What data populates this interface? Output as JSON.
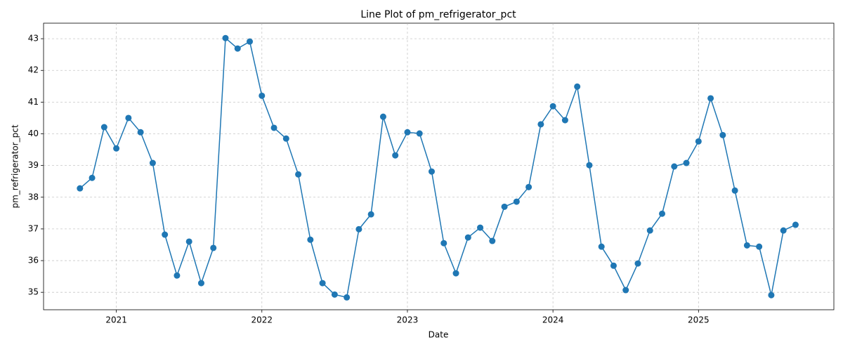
{
  "chart_data": {
    "type": "line",
    "title": "Line Plot of pm_refrigerator_pct",
    "x_label": "Date",
    "y_label": "pm_refrigerator_pct",
    "x": [
      "2020-10",
      "2020-11",
      "2020-12",
      "2021-01",
      "2021-02",
      "2021-03",
      "2021-04",
      "2021-05",
      "2021-06",
      "2021-07",
      "2021-08",
      "2021-09",
      "2021-10",
      "2021-11",
      "2021-12",
      "2022-01",
      "2022-02",
      "2022-03",
      "2022-04",
      "2022-05",
      "2022-06",
      "2022-07",
      "2022-08",
      "2022-09",
      "2022-10",
      "2022-11",
      "2022-12",
      "2023-01",
      "2023-02",
      "2023-03",
      "2023-04",
      "2023-05",
      "2023-06",
      "2023-07",
      "2023-08",
      "2023-09",
      "2023-10",
      "2023-11",
      "2023-12",
      "2024-01",
      "2024-02",
      "2024-03",
      "2024-04",
      "2024-05",
      "2024-06",
      "2024-07",
      "2024-08",
      "2024-09",
      "2024-10",
      "2024-11",
      "2024-12",
      "2025-01",
      "2025-02",
      "2025-03",
      "2025-04",
      "2025-05",
      "2025-06",
      "2025-07",
      "2025-08",
      "2025-09"
    ],
    "series": [
      {
        "name": "pm_refrigerator_pct",
        "color": "#1f77b4",
        "values": [
          38.28,
          38.61,
          40.21,
          39.54,
          40.5,
          40.05,
          39.08,
          36.82,
          35.53,
          36.6,
          35.29,
          36.4,
          43.02,
          42.69,
          42.91,
          41.2,
          40.19,
          39.85,
          38.72,
          36.66,
          35.29,
          34.93,
          34.84,
          36.99,
          37.46,
          40.54,
          39.32,
          40.05,
          40.01,
          38.81,
          36.55,
          35.6,
          36.73,
          37.04,
          36.62,
          37.7,
          37.86,
          38.32,
          40.3,
          40.87,
          40.43,
          41.49,
          39.01,
          36.44,
          35.84,
          35.07,
          35.91,
          36.95,
          37.48,
          38.97,
          39.08,
          39.76,
          41.12,
          39.96,
          38.21,
          36.48,
          36.44,
          34.91,
          36.95,
          37.13
        ]
      }
    ],
    "xlim": [
      2020.5,
      2025.93
    ],
    "xticks": [
      2021,
      2022,
      2023,
      2024,
      2025
    ],
    "ylim": [
      34.45,
      43.49
    ],
    "yticks": [
      35,
      36,
      37,
      38,
      39,
      40,
      41,
      42,
      43
    ],
    "grid": true
  }
}
